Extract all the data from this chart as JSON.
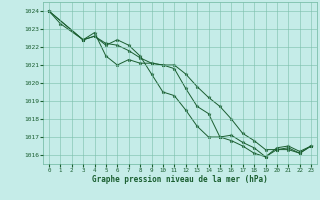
{
  "title": "Graphe pression niveau de la mer (hPa)",
  "bg_color": "#c5ece8",
  "grid_color": "#7bbfaa",
  "line_color": "#1a5e30",
  "xlim": [
    -0.5,
    23.5
  ],
  "ylim": [
    1015.5,
    1024.5
  ],
  "yticks": [
    1016,
    1017,
    1018,
    1019,
    1020,
    1021,
    1022,
    1023,
    1024
  ],
  "xticks": [
    0,
    1,
    2,
    3,
    4,
    5,
    6,
    7,
    8,
    9,
    10,
    11,
    12,
    13,
    14,
    15,
    16,
    17,
    18,
    19,
    20,
    21,
    22,
    23
  ],
  "line1": {
    "x": [
      0,
      1,
      3,
      4,
      5,
      6,
      7,
      8,
      9,
      10,
      11,
      12,
      13,
      14,
      15,
      16,
      17,
      18,
      19,
      20,
      21,
      22,
      23
    ],
    "y": [
      1024.0,
      1023.3,
      1022.4,
      1022.6,
      1022.2,
      1022.1,
      1021.8,
      1021.4,
      1021.1,
      1021.0,
      1021.0,
      1020.5,
      1019.8,
      1019.2,
      1018.7,
      1018.0,
      1017.2,
      1016.8,
      1016.3,
      1016.3,
      1016.3,
      1016.1,
      1016.5
    ]
  },
  "line2": {
    "x": [
      0,
      3,
      4,
      5,
      6,
      7,
      8,
      9,
      10,
      11,
      12,
      13,
      14,
      15,
      16,
      17,
      18,
      19,
      20,
      21,
      22,
      23
    ],
    "y": [
      1024.0,
      1022.4,
      1022.8,
      1021.5,
      1021.0,
      1021.3,
      1021.1,
      1021.1,
      1021.0,
      1020.8,
      1019.7,
      1018.7,
      1018.3,
      1017.0,
      1017.1,
      1016.7,
      1016.4,
      1015.9,
      1016.4,
      1016.5,
      1016.2,
      1016.5
    ]
  },
  "line3": {
    "x": [
      0,
      3,
      4,
      5,
      6,
      7,
      8,
      9,
      10,
      11,
      12,
      13,
      14,
      15,
      16,
      17,
      18,
      19,
      20,
      21,
      22,
      23
    ],
    "y": [
      1024.0,
      1022.4,
      1022.6,
      1022.1,
      1022.4,
      1022.1,
      1021.5,
      1020.5,
      1019.5,
      1019.3,
      1018.5,
      1017.6,
      1017.0,
      1017.0,
      1016.8,
      1016.5,
      1016.1,
      1015.9,
      1016.3,
      1016.4,
      1016.1,
      1016.5
    ]
  }
}
